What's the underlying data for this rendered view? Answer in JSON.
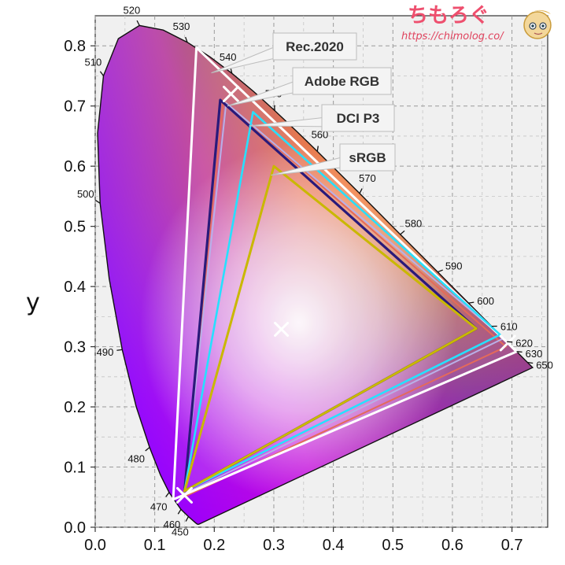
{
  "site": {
    "name": "ちもろぐ",
    "url": "https://chimolog.co/"
  },
  "chart_data": {
    "type": "scatter",
    "title": "",
    "xlabel": "",
    "ylabel": "y",
    "xlim": [
      0,
      0.76
    ],
    "ylim": [
      0,
      0.85
    ],
    "x_ticks": [
      "0.0",
      "0.1",
      "0.2",
      "0.3",
      "0.4",
      "0.5",
      "0.6",
      "0.7"
    ],
    "y_ticks": [
      "0.0",
      "0.1",
      "0.2",
      "0.3",
      "0.4",
      "0.5",
      "0.6",
      "0.7",
      "0.8"
    ],
    "grid": true,
    "locus_wavelengths": [
      {
        "nm": "450",
        "x": 0.1566,
        "y": 0.0177
      },
      {
        "nm": "460",
        "x": 0.144,
        "y": 0.0297
      },
      {
        "nm": "470",
        "x": 0.1241,
        "y": 0.0578
      },
      {
        "nm": "480",
        "x": 0.0913,
        "y": 0.1327
      },
      {
        "nm": "490",
        "x": 0.0454,
        "y": 0.295
      },
      {
        "nm": "500",
        "x": 0.0082,
        "y": 0.5384
      },
      {
        "nm": "510",
        "x": 0.0139,
        "y": 0.7502
      },
      {
        "nm": "520",
        "x": 0.0743,
        "y": 0.8338
      },
      {
        "nm": "530",
        "x": 0.1547,
        "y": 0.8059
      },
      {
        "nm": "540",
        "x": 0.2296,
        "y": 0.7543
      },
      {
        "nm": "550",
        "x": 0.3016,
        "y": 0.6923
      },
      {
        "nm": "560",
        "x": 0.3731,
        "y": 0.6245
      },
      {
        "nm": "570",
        "x": 0.4441,
        "y": 0.5547
      },
      {
        "nm": "580",
        "x": 0.5125,
        "y": 0.4866
      },
      {
        "nm": "590",
        "x": 0.5752,
        "y": 0.4242
      },
      {
        "nm": "600",
        "x": 0.627,
        "y": 0.3725
      },
      {
        "nm": "610",
        "x": 0.6658,
        "y": 0.334
      },
      {
        "nm": "620",
        "x": 0.6915,
        "y": 0.3083
      },
      {
        "nm": "630",
        "x": 0.7079,
        "y": 0.292
      },
      {
        "nm": "650",
        "x": 0.726,
        "y": 0.274
      }
    ],
    "gamuts": [
      {
        "name": "Rec.2020",
        "color": "#ffffff",
        "points": [
          [
            0.708,
            0.292
          ],
          [
            0.17,
            0.797
          ],
          [
            0.131,
            0.046
          ]
        ]
      },
      {
        "name": "Adobe RGB",
        "color": "#2a1a7a",
        "points": [
          [
            0.64,
            0.33
          ],
          [
            0.21,
            0.71
          ],
          [
            0.15,
            0.06
          ]
        ]
      },
      {
        "name": "DCI P3",
        "color": "#26e0ff",
        "points": [
          [
            0.68,
            0.32
          ],
          [
            0.265,
            0.69
          ],
          [
            0.15,
            0.06
          ]
        ]
      },
      {
        "name": "sRGB",
        "color": "#c9b800",
        "points": [
          [
            0.64,
            0.33
          ],
          [
            0.3,
            0.6
          ],
          [
            0.15,
            0.06
          ]
        ]
      }
    ],
    "measured_gamuts": [
      {
        "color": "#e46a5a",
        "points": [
          [
            0.69,
            0.3
          ],
          [
            0.215,
            0.71
          ],
          [
            0.148,
            0.05
          ]
        ]
      },
      {
        "color": "#b8b0e8",
        "points": [
          [
            0.686,
            0.314
          ],
          [
            0.22,
            0.705
          ],
          [
            0.149,
            0.055
          ]
        ]
      }
    ],
    "primary_markers": [
      [
        0.228,
        0.72
      ],
      [
        0.693,
        0.306
      ],
      [
        0.15,
        0.053
      ]
    ],
    "white_point": [
      0.3127,
      0.329
    ]
  }
}
